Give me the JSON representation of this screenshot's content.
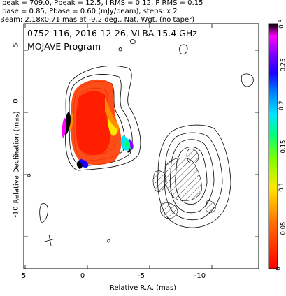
{
  "header": {
    "line1": "Ipeak = 709.0, Ppeak = 12.5, I RMS = 0.12, P RMS = 0.15",
    "line2": "Ibase = 0.85, Pbase = 0.60 (mJy/beam), steps: x 2",
    "line3": "Beam: 2.18x0.71 mas at -9.2 deg., Nat. Wgt. (no taper)"
  },
  "chart_data": {
    "type": "contour",
    "source": "0752-116, 2016-12-26, VLBA 15.4 GHz",
    "program": "MOJAVE Program",
    "xlabel": "Relative R.A. (mas)",
    "ylabel": "Relative Declination (mas)",
    "xlim": [
      5,
      -15
    ],
    "ylim": [
      -15,
      7
    ],
    "xticks": [
      5,
      0,
      -5,
      -10
    ],
    "yticks": [
      5,
      0,
      -5,
      -10
    ],
    "colorbar": {
      "ticks": [
        0.3,
        0.25,
        0.2,
        0.15,
        0.1,
        0.05,
        0
      ],
      "range": [
        0,
        0.3
      ]
    }
  }
}
